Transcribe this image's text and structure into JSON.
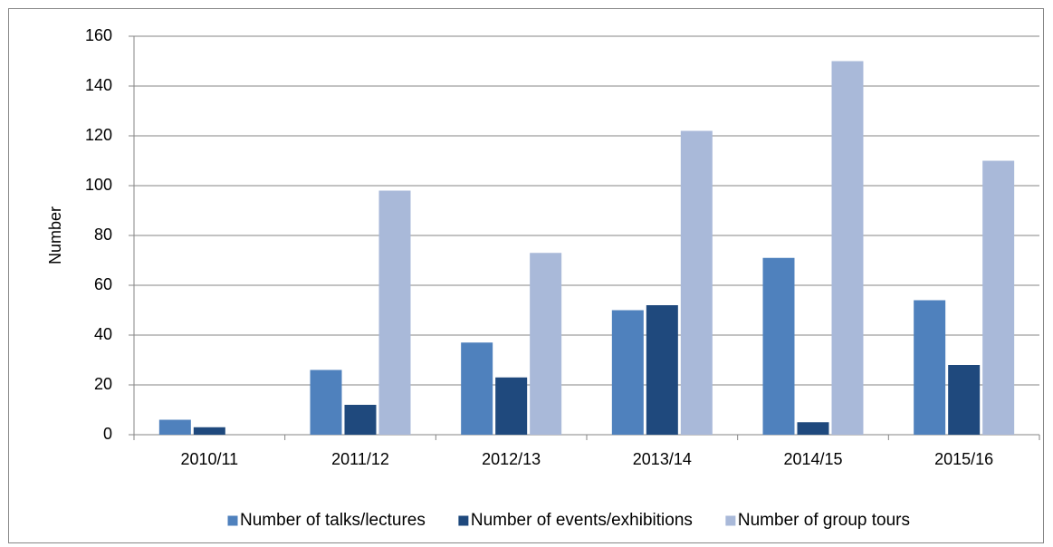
{
  "chart_data": {
    "type": "bar",
    "y_label": "Number",
    "categories": [
      "2010/11",
      "2011/12",
      "2012/13",
      "2013/14",
      "2014/15",
      "2015/16"
    ],
    "series": [
      {
        "name": "Number of talks/lectures",
        "color": "#4f81bd",
        "values": [
          6,
          26,
          37,
          50,
          71,
          54
        ]
      },
      {
        "name": "Number of events/exhibitions",
        "color": "#1f497d",
        "values": [
          3,
          12,
          23,
          52,
          5,
          28
        ]
      },
      {
        "name": "Number of group tours",
        "color": "#a9b9d9",
        "values": [
          0,
          98,
          73,
          122,
          150,
          110
        ]
      }
    ],
    "ylim": [
      0,
      160
    ],
    "yticks": [
      0,
      20,
      40,
      60,
      80,
      100,
      120,
      140,
      160
    ],
    "grid": true,
    "legend": "bottom"
  }
}
